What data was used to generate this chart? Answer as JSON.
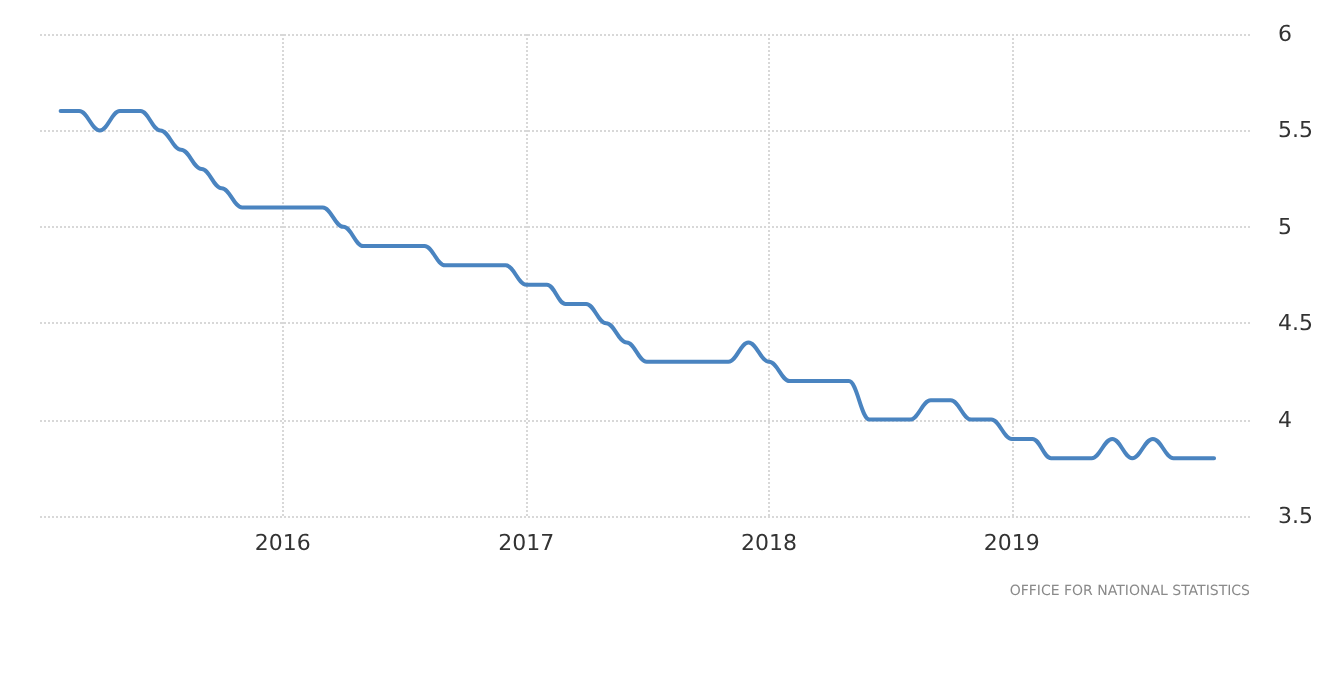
{
  "chart_data": {
    "type": "line",
    "x": [
      "2015-02",
      "2015-03",
      "2015-04",
      "2015-05",
      "2015-06",
      "2015-07",
      "2015-08",
      "2015-09",
      "2015-10",
      "2015-11",
      "2015-12",
      "2016-01",
      "2016-02",
      "2016-03",
      "2016-04",
      "2016-05",
      "2016-06",
      "2016-07",
      "2016-08",
      "2016-09",
      "2016-10",
      "2016-11",
      "2016-12",
      "2017-01",
      "2017-02",
      "2017-03",
      "2017-04",
      "2017-05",
      "2017-06",
      "2017-07",
      "2017-08",
      "2017-09",
      "2017-10",
      "2017-11",
      "2017-12",
      "2018-01",
      "2018-02",
      "2018-03",
      "2018-04",
      "2018-05",
      "2018-06",
      "2018-07",
      "2018-08",
      "2018-09",
      "2018-10",
      "2018-11",
      "2018-12",
      "2019-01",
      "2019-02",
      "2019-03",
      "2019-04",
      "2019-05",
      "2019-06",
      "2019-07",
      "2019-08",
      "2019-09",
      "2019-10",
      "2019-11"
    ],
    "series": [
      {
        "color": "#4a84c0",
        "values": [
          5.6,
          5.6,
          5.5,
          5.6,
          5.6,
          5.5,
          5.4,
          5.3,
          5.2,
          5.1,
          5.1,
          5.1,
          5.1,
          5.1,
          5.0,
          4.9,
          4.9,
          4.9,
          4.9,
          4.8,
          4.8,
          4.8,
          4.8,
          4.7,
          4.7,
          4.6,
          4.6,
          4.5,
          4.4,
          4.3,
          4.3,
          4.3,
          4.3,
          4.3,
          4.4,
          4.3,
          4.2,
          4.2,
          4.2,
          4.2,
          4.0,
          4.0,
          4.0,
          4.1,
          4.1,
          4.0,
          4.0,
          3.9,
          3.9,
          3.8,
          3.8,
          3.8,
          3.9,
          3.8,
          3.9,
          3.8,
          3.8,
          3.8
        ]
      }
    ],
    "xlim": [
      "2015-01-01",
      "2019-12-25"
    ],
    "xticks": [
      "2016",
      "2017",
      "2018",
      "2019"
    ],
    "ylim": [
      3.5,
      6
    ],
    "yticks": [
      3.5,
      4,
      4.5,
      5,
      5.5,
      6
    ],
    "grid": true,
    "marker": "none",
    "line_style": "solid",
    "annotations": [
      "OFFICE FOR NATIONAL STATISTICS"
    ]
  }
}
